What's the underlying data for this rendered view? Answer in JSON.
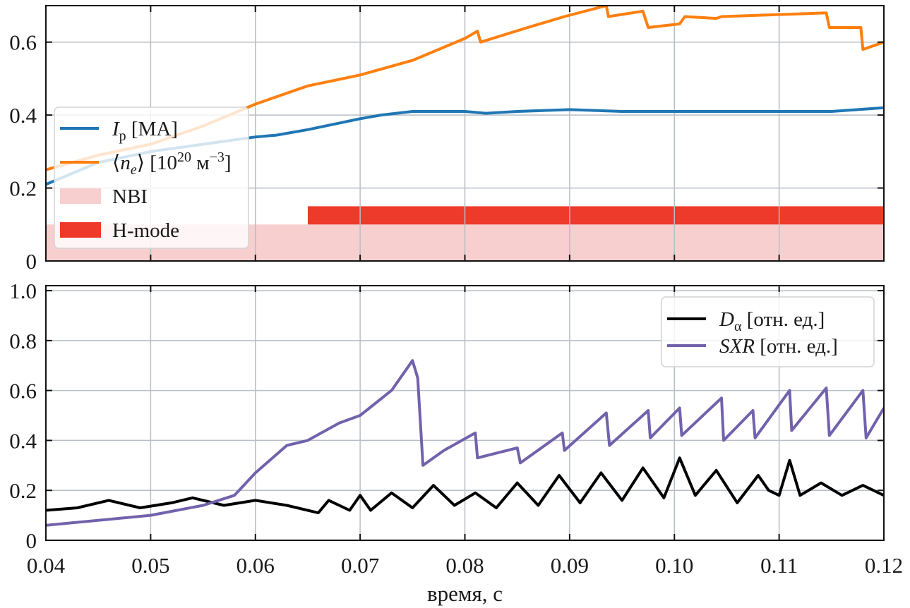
{
  "chart_data": [
    {
      "type": "line",
      "panel": "top",
      "ylim": [
        0,
        0.7
      ],
      "xlim": [
        0.04,
        0.12
      ],
      "yticks": [
        "0",
        "0.2",
        "0.4",
        "0.6"
      ],
      "ytick_values": [
        0,
        0.2,
        0.4,
        0.6
      ],
      "grid": true,
      "legend_placement": "center-left",
      "series": [
        {
          "name": "Ip",
          "color": "#1f77b4",
          "legend": [
            {
              "t": "I",
              "s": "i"
            },
            {
              "t": "p",
              "s": "sub"
            },
            {
              "t": " [MA]",
              "s": "n"
            }
          ],
          "x": [
            0.04,
            0.045,
            0.05,
            0.055,
            0.06,
            0.062,
            0.065,
            0.07,
            0.072,
            0.075,
            0.08,
            0.082,
            0.085,
            0.09,
            0.095,
            0.1,
            0.105,
            0.11,
            0.115,
            0.12
          ],
          "y": [
            0.21,
            0.27,
            0.3,
            0.32,
            0.34,
            0.345,
            0.36,
            0.39,
            0.4,
            0.41,
            0.41,
            0.405,
            0.41,
            0.415,
            0.41,
            0.41,
            0.41,
            0.41,
            0.41,
            0.42
          ]
        },
        {
          "name": "ne",
          "color": "#ff7f0e",
          "legend": [
            {
              "t": "⟨",
              "s": "n"
            },
            {
              "t": "n",
              "s": "i"
            },
            {
              "t": "e",
              "s": "sub-i"
            },
            {
              "t": "⟩ [10",
              "s": "n"
            },
            {
              "t": "20",
              "s": "sup"
            },
            {
              "t": " м",
              "s": "n"
            },
            {
              "t": "−3",
              "s": "sup"
            },
            {
              "t": "]",
              "s": "n"
            }
          ],
          "x": [
            0.04,
            0.045,
            0.05,
            0.055,
            0.06,
            0.065,
            0.07,
            0.075,
            0.08,
            0.0812,
            0.0815,
            0.086,
            0.0895,
            0.0935,
            0.0937,
            0.097,
            0.0975,
            0.1005,
            0.101,
            0.104,
            0.1045,
            0.1145,
            0.1148,
            0.1178,
            0.118,
            0.12
          ],
          "y": [
            0.25,
            0.29,
            0.32,
            0.37,
            0.43,
            0.48,
            0.51,
            0.55,
            0.61,
            0.63,
            0.6,
            0.64,
            0.67,
            0.7,
            0.67,
            0.685,
            0.64,
            0.65,
            0.67,
            0.665,
            0.67,
            0.68,
            0.64,
            0.64,
            0.58,
            0.6
          ]
        }
      ],
      "bands": [
        {
          "name": "NBI",
          "color": "#f8cfcf",
          "x": [
            0.04,
            0.12
          ],
          "y": [
            0,
            0.1
          ],
          "legend": "NBI"
        },
        {
          "name": "H-mode",
          "color": "#ee3a2a",
          "x": [
            0.065,
            0.12
          ],
          "y": [
            0.1,
            0.15
          ],
          "legend": "H-mode"
        }
      ]
    },
    {
      "type": "line",
      "panel": "bottom",
      "ylim": [
        0,
        1.02
      ],
      "xlim": [
        0.04,
        0.12
      ],
      "yticks": [
        "0",
        "0.2",
        "0.4",
        "0.6",
        "0.8",
        "1.0"
      ],
      "ytick_values": [
        0,
        0.2,
        0.4,
        0.6,
        0.8,
        1.0
      ],
      "xticks": [
        "0.04",
        "0.05",
        "0.06",
        "0.07",
        "0.08",
        "0.09",
        "0.10",
        "0.11",
        "0.12"
      ],
      "xtick_values": [
        0.04,
        0.05,
        0.06,
        0.07,
        0.08,
        0.09,
        0.1,
        0.11,
        0.12
      ],
      "xlabel": "время, с",
      "grid": true,
      "legend_placement": "top-right",
      "series": [
        {
          "name": "Dalpha",
          "color": "#000000",
          "legend": [
            {
              "t": "D",
              "s": "i"
            },
            {
              "t": "α",
              "s": "sub"
            },
            {
              "t": " [отн. ед.]",
              "s": "n"
            }
          ],
          "x": [
            0.04,
            0.043,
            0.046,
            0.049,
            0.052,
            0.054,
            0.057,
            0.06,
            0.063,
            0.066,
            0.067,
            0.069,
            0.07,
            0.071,
            0.073,
            0.075,
            0.077,
            0.079,
            0.081,
            0.083,
            0.085,
            0.087,
            0.089,
            0.091,
            0.093,
            0.095,
            0.097,
            0.099,
            0.1005,
            0.102,
            0.104,
            0.106,
            0.108,
            0.109,
            0.11,
            0.111,
            0.112,
            0.114,
            0.116,
            0.118,
            0.12
          ],
          "y": [
            0.12,
            0.13,
            0.16,
            0.13,
            0.15,
            0.17,
            0.14,
            0.16,
            0.14,
            0.11,
            0.16,
            0.12,
            0.18,
            0.12,
            0.19,
            0.13,
            0.22,
            0.14,
            0.19,
            0.13,
            0.23,
            0.14,
            0.26,
            0.15,
            0.27,
            0.16,
            0.29,
            0.17,
            0.33,
            0.18,
            0.28,
            0.15,
            0.26,
            0.2,
            0.18,
            0.32,
            0.18,
            0.23,
            0.18,
            0.22,
            0.18
          ]
        },
        {
          "name": "SXR",
          "color": "#7262ac",
          "legend": [
            {
              "t": "SXR",
              "s": "i"
            },
            {
              "t": " [отн. ед.]",
              "s": "n"
            }
          ],
          "x": [
            0.04,
            0.05,
            0.055,
            0.058,
            0.06,
            0.063,
            0.065,
            0.068,
            0.07,
            0.073,
            0.075,
            0.0755,
            0.076,
            0.078,
            0.081,
            0.0812,
            0.085,
            0.0853,
            0.0893,
            0.0895,
            0.0935,
            0.0938,
            0.0975,
            0.0977,
            0.1005,
            0.1007,
            0.1045,
            0.1047,
            0.1075,
            0.1077,
            0.111,
            0.1112,
            0.1145,
            0.1148,
            0.118,
            0.1183,
            0.12
          ],
          "y": [
            0.06,
            0.1,
            0.14,
            0.18,
            0.27,
            0.38,
            0.4,
            0.47,
            0.5,
            0.6,
            0.72,
            0.65,
            0.3,
            0.36,
            0.43,
            0.33,
            0.37,
            0.31,
            0.43,
            0.36,
            0.51,
            0.38,
            0.52,
            0.41,
            0.53,
            0.42,
            0.57,
            0.4,
            0.52,
            0.41,
            0.6,
            0.44,
            0.61,
            0.42,
            0.6,
            0.41,
            0.53
          ]
        }
      ]
    }
  ]
}
